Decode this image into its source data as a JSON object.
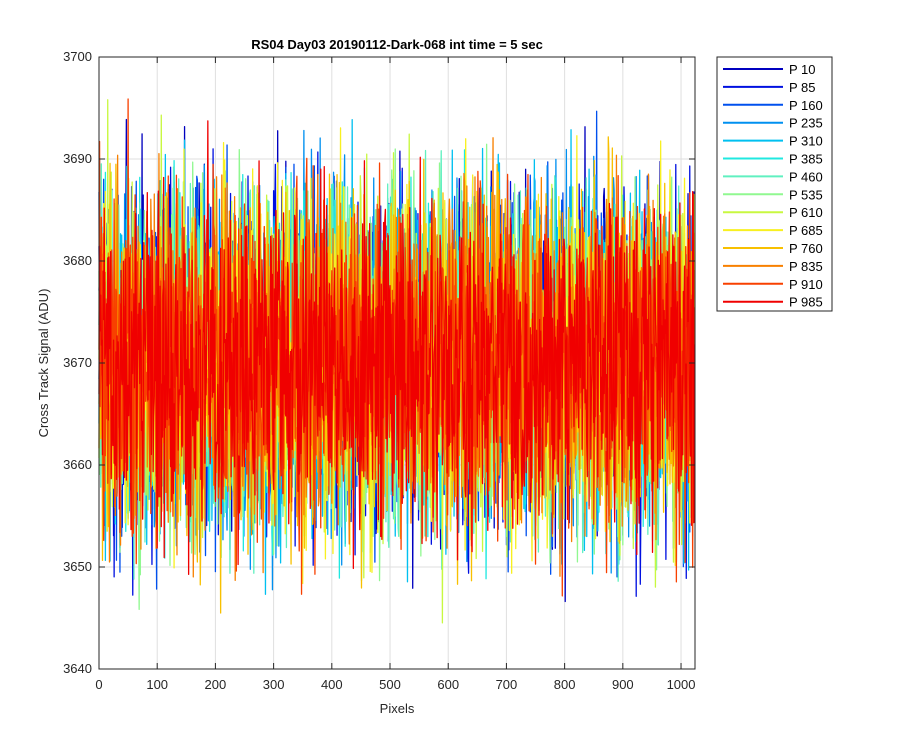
{
  "chart_data": {
    "type": "line",
    "title": "RS04 Day03 20190112-Dark-068 int time = 5 sec",
    "xlabel": "Pixels",
    "ylabel": "Cross Track Signal (ADU)",
    "xlim": [
      0,
      1024
    ],
    "ylim": [
      3640,
      3700
    ],
    "xticks": [
      0,
      100,
      200,
      300,
      400,
      500,
      600,
      700,
      800,
      900,
      1000
    ],
    "yticks": [
      3640,
      3650,
      3660,
      3670,
      3680,
      3690,
      3700
    ],
    "grid": true,
    "legend_position": "outside-top-right",
    "n_points": 1024,
    "noise_mean": 3670,
    "noise_min": 3640,
    "noise_max": 3698,
    "series": [
      {
        "name": "P 10",
        "color": "#0000bf"
      },
      {
        "name": "P 85",
        "color": "#0010e0"
      },
      {
        "name": "P 160",
        "color": "#0050ee"
      },
      {
        "name": "P 235",
        "color": "#0090f0"
      },
      {
        "name": "P 310",
        "color": "#00c0f0"
      },
      {
        "name": "P 385",
        "color": "#20e8e0"
      },
      {
        "name": "P 460",
        "color": "#60f0c0"
      },
      {
        "name": "P 535",
        "color": "#90f890"
      },
      {
        "name": "P 610",
        "color": "#c8f840"
      },
      {
        "name": "P 685",
        "color": "#f8f020"
      },
      {
        "name": "P 760",
        "color": "#f8c000"
      },
      {
        "name": "P 835",
        "color": "#f88000"
      },
      {
        "name": "P 910",
        "color": "#f84000"
      },
      {
        "name": "P 985",
        "color": "#f00000"
      }
    ]
  }
}
